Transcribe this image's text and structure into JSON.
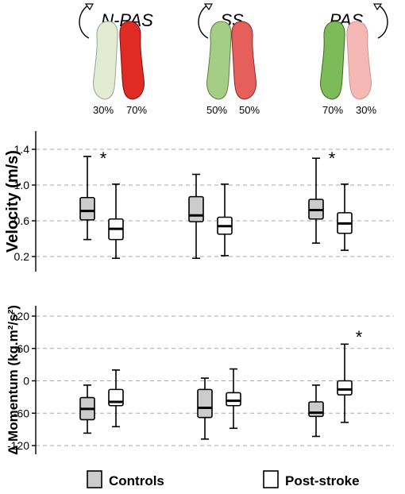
{
  "conditions": [
    {
      "name": "N-PAS",
      "left_pct": "30%",
      "right_pct": "70%",
      "left_color": "#e3ecd2",
      "right_color": "#e02a24"
    },
    {
      "name": "SS",
      "left_pct": "50%",
      "right_pct": "50%",
      "left_color": "#a6cd86",
      "right_color": "#e6605b"
    },
    {
      "name": "PAS",
      "left_pct": "70%",
      "right_pct": "30%",
      "left_color": "#7dba58",
      "right_color": "#f6b8b4"
    }
  ],
  "legend": {
    "controls": "Controls",
    "post_stroke": "Post-stroke"
  },
  "colors": {
    "controls_fill": "#cccccc",
    "post_stroke_fill": "#ffffff",
    "box_stroke": "#000000",
    "grid": "#aaaaaa"
  },
  "chart_data": [
    {
      "type": "box",
      "ylabel": "Velocity (m/s)",
      "ylim": [
        0.05,
        1.55
      ],
      "yticks": [
        "0.2",
        "0.6",
        "1.0",
        "1.4"
      ],
      "ytick_values": [
        0.2,
        0.6,
        1.0,
        1.4
      ],
      "grid": true,
      "categories": [
        "N-PAS",
        "SS",
        "PAS"
      ],
      "series": [
        {
          "name": "Controls",
          "boxes": [
            {
              "min": 0.39,
              "q1": 0.61,
              "median": 0.71,
              "q3": 0.86,
              "max": 1.32
            },
            {
              "min": 0.18,
              "q1": 0.59,
              "median": 0.66,
              "q3": 0.87,
              "max": 1.12
            },
            {
              "min": 0.35,
              "q1": 0.62,
              "median": 0.72,
              "q3": 0.84,
              "max": 1.3
            }
          ]
        },
        {
          "name": "Post-stroke",
          "boxes": [
            {
              "min": 0.18,
              "q1": 0.39,
              "median": 0.51,
              "q3": 0.62,
              "max": 1.01
            },
            {
              "min": 0.21,
              "q1": 0.45,
              "median": 0.54,
              "q3": 0.64,
              "max": 1.01
            },
            {
              "min": 0.27,
              "q1": 0.46,
              "median": 0.57,
              "q3": 0.69,
              "max": 1.01
            }
          ]
        }
      ],
      "annotations": [
        {
          "text": "*",
          "category": "N-PAS"
        },
        {
          "text": "*",
          "category": "PAS"
        }
      ]
    },
    {
      "type": "box",
      "ylabel": "Δ Momentum (kg.m²/s²)",
      "ylim": [
        -130,
        130
      ],
      "yticks": [
        "-120",
        "-60",
        "0",
        "60",
        "120"
      ],
      "ytick_values": [
        -120,
        -60,
        0,
        60,
        120
      ],
      "grid": true,
      "categories": [
        "N-PAS",
        "SS",
        "PAS"
      ],
      "series": [
        {
          "name": "Controls",
          "boxes": [
            {
              "min": -97,
              "q1": -72,
              "median": -52,
              "q3": -31,
              "max": -8
            },
            {
              "min": -108,
              "q1": -68,
              "median": -50,
              "q3": -16,
              "max": 5
            },
            {
              "min": -103,
              "q1": -66,
              "median": -59,
              "q3": -39,
              "max": -8
            }
          ]
        },
        {
          "name": "Post-stroke",
          "boxes": [
            {
              "min": -85,
              "q1": -46,
              "median": -39,
              "q3": -16,
              "max": 20
            },
            {
              "min": -88,
              "q1": -46,
              "median": -37,
              "q3": -22,
              "max": 22
            },
            {
              "min": -77,
              "q1": -26,
              "median": -16,
              "q3": 0,
              "max": 68
            }
          ]
        }
      ],
      "annotations": [
        {
          "text": "*",
          "category": "PAS"
        }
      ]
    }
  ]
}
